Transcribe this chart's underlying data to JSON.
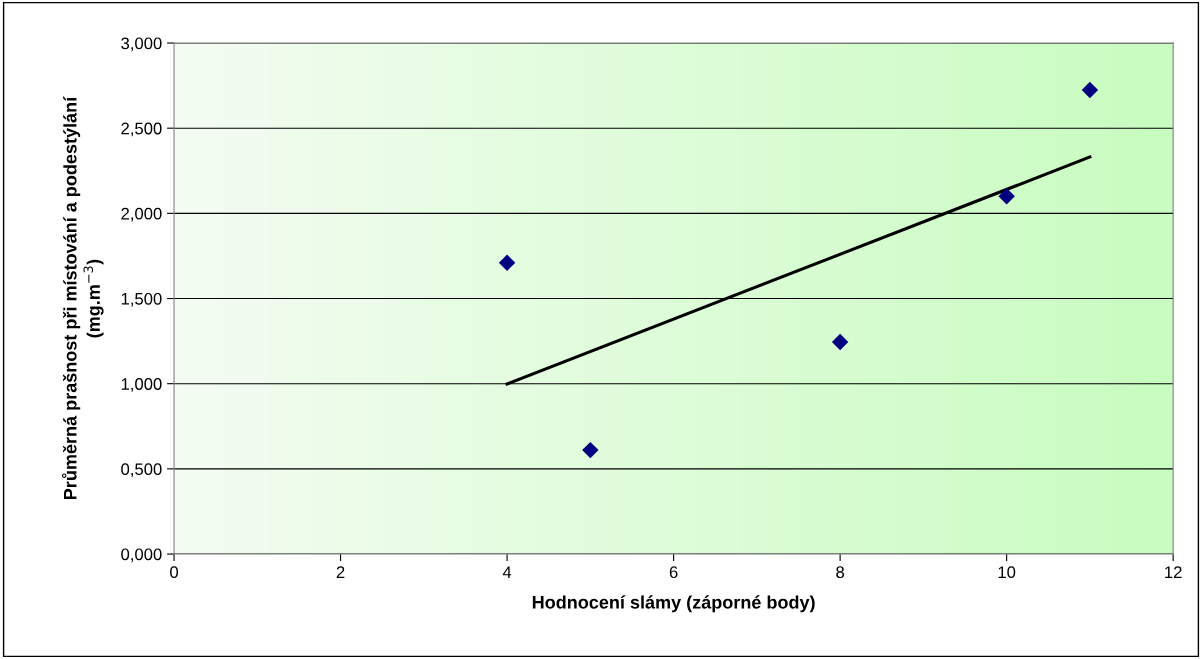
{
  "chart_data": {
    "type": "scatter",
    "xlabel": "Hodnocení slámy (záporné body)",
    "ylabel": "Průměrná prašnost při místování a podestýlání\n(mg.m$^{−3}$)",
    "series": [
      {
        "color": "#000080",
        "x": [
          4,
          5,
          8,
          10,
          11
        ],
        "values": [
          1.71,
          0.61,
          1.245,
          2.1,
          2.724
        ],
        "marker": "diamond"
      },
      {
        "type": "line",
        "color": "#000000",
        "x": [
          4,
          11
        ],
        "values": [
          0.998,
          2.331
        ],
        "marker": "none",
        "line_style": "solid"
      }
    ],
    "xlim": [
      0,
      12
    ],
    "xticks": [
      0,
      2,
      4,
      6,
      8,
      10,
      12
    ],
    "ylim": [
      0,
      3
    ],
    "yticks": [
      {
        "value": 0,
        "label": "0,000"
      },
      {
        "value": 0.5,
        "label": "0,500"
      },
      {
        "value": 1,
        "label": "1,000"
      },
      {
        "value": 1.5,
        "label": "1,500"
      },
      {
        "value": 2,
        "label": "2,000"
      },
      {
        "value": 2.5,
        "label": "2,500"
      },
      {
        "value": 3,
        "label": "3,000"
      }
    ],
    "grid": "y",
    "legend": false
  }
}
